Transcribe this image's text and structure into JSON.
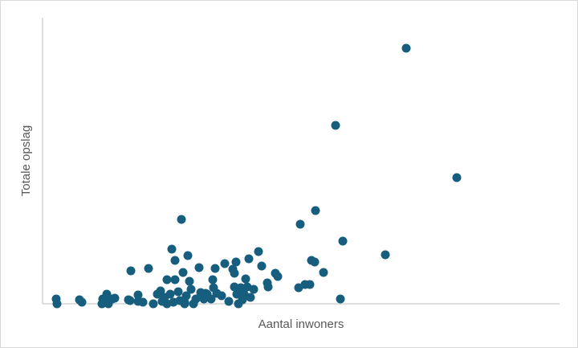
{
  "chart_data": {
    "type": "scatter",
    "x_label": "Aantal inwoners",
    "y_label": "Totale opslag",
    "color": "#175e7e",
    "xlim": [
      0,
      644
    ],
    "ylim": [
      0,
      356
    ],
    "x": [
      17,
      18,
      46,
      49,
      74,
      75,
      80,
      82,
      90,
      109,
      110,
      119,
      119,
      125,
      132,
      138,
      147,
      149,
      152,
      155,
      159,
      161,
      163,
      165,
      165,
      169,
      171,
      173,
      175,
      177,
      179,
      181,
      183,
      185,
      188,
      191,
      195,
      197,
      201,
      203,
      210,
      212,
      213,
      215,
      217,
      223,
      227,
      239,
      239,
      241,
      242,
      244,
      247,
      249,
      251,
      253,
      255,
      257,
      259,
      263,
      269,
      273,
      280,
      281,
      290,
      293,
      319,
      321,
      327,
      333,
      335,
      339,
      340,
      350,
      365,
      371,
      374,
      427,
      453,
      516,
      237,
      205,
      232,
      177,
      143,
      155,
      107,
      82,
      87
    ],
    "values": [
      6,
      0,
      5,
      2,
      0,
      6,
      12,
      3,
      7,
      4,
      41,
      11,
      3,
      2,
      44,
      0,
      16,
      3,
      8,
      30,
      12,
      68,
      2,
      54,
      30,
      15,
      4,
      105,
      39,
      2,
      10,
      60,
      28,
      18,
      0,
      6,
      45,
      14,
      6,
      13,
      6,
      30,
      20,
      44,
      13,
      10,
      50,
      38,
      21,
      52,
      12,
      0,
      20,
      5,
      12,
      31,
      21,
      56,
      8,
      18,
      65,
      47,
      26,
      21,
      38,
      34,
      20,
      99,
      24,
      24,
      54,
      52,
      116,
      39,
      222,
      6,
      78,
      61,
      318,
      157,
      43,
      12,
      3,
      0,
      12,
      0,
      5,
      0,
      6
    ]
  }
}
